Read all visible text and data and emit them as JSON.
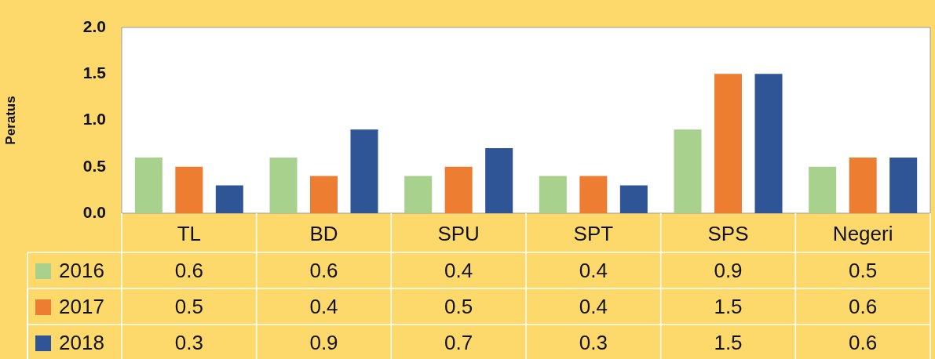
{
  "chart_data": {
    "type": "bar",
    "ylabel": "Peratus",
    "categories": [
      "TL",
      "BD",
      "SPU",
      "SPT",
      "SPS",
      "Negeri"
    ],
    "series": [
      {
        "name": "2016",
        "color": "#a9d18e",
        "values": [
          0.6,
          0.6,
          0.4,
          0.4,
          0.9,
          0.5
        ]
      },
      {
        "name": "2017",
        "color": "#ed7d31",
        "values": [
          0.5,
          0.4,
          0.5,
          0.4,
          1.5,
          0.6
        ]
      },
      {
        "name": "2018",
        "color": "#2f5597",
        "values": [
          0.3,
          0.9,
          0.7,
          0.3,
          1.5,
          0.6
        ]
      }
    ],
    "ylim": [
      0,
      2
    ],
    "yticks": [
      {
        "value": 0,
        "label": "0.0"
      },
      {
        "value": 0.5,
        "label": "0.5"
      },
      {
        "value": 1,
        "label": "1.0"
      },
      {
        "value": 1.5,
        "label": "1.5"
      },
      {
        "value": 2,
        "label": "2.0"
      }
    ],
    "grid": false,
    "legend": "bottom",
    "data_labels": true
  }
}
